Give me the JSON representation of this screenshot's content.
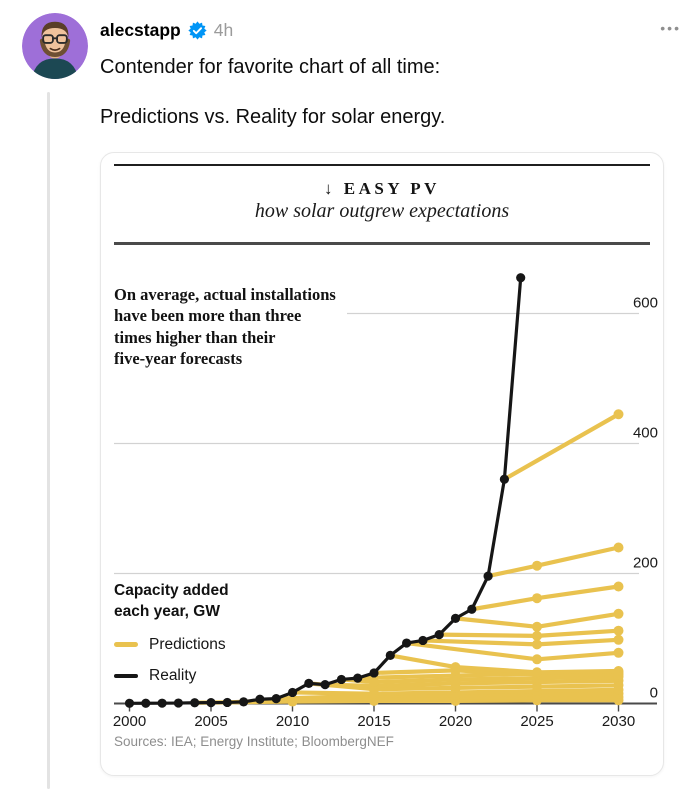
{
  "icons": {
    "more_options": "•••",
    "verified_badge_color": "#0095f6"
  },
  "post": {
    "username": "alecstapp",
    "timestamp": "4h",
    "verified": true,
    "text_line1": "Contender for favorite chart of all time:",
    "text_line2": "Predictions vs. Reality for solar energy."
  },
  "chart_card": {
    "kicker": "↓ EASY PV",
    "subtitle": "how solar outgrew expectations",
    "annotation_lines": [
      "On average, actual installations",
      "have been more than three",
      "times higher than their",
      "five-year forecasts"
    ],
    "legend": {
      "title_line1": "Capacity added",
      "title_line2": "each year, GW",
      "items": [
        {
          "label": "Predictions",
          "color": "#e9c24f"
        },
        {
          "label": "Reality",
          "color": "#161616"
        }
      ]
    },
    "sources": "Sources: IEA; Energy Institute; BloombergNEF"
  },
  "chart_data": {
    "type": "line",
    "title": "EASY PV — how solar outgrew expectations",
    "ylabel": "Capacity added each year, GW",
    "xlim": [
      1999.2,
      2032.5
    ],
    "ylim": [
      0,
      680
    ],
    "x_ticks": [
      2000,
      2005,
      2010,
      2015,
      2020,
      2025,
      2030
    ],
    "y_ticks": [
      0,
      200,
      400,
      600
    ],
    "y_axis_side": "right",
    "grid": true,
    "legend_position": "left-middle",
    "colors": {
      "predictions": "#e9c24f",
      "reality": "#161616"
    },
    "reality": {
      "label": "Reality",
      "years": [
        2000,
        2001,
        2002,
        2003,
        2004,
        2005,
        2006,
        2007,
        2008,
        2009,
        2010,
        2011,
        2012,
        2013,
        2014,
        2015,
        2016,
        2017,
        2018,
        2019,
        2020,
        2021,
        2022,
        2023,
        2024
      ],
      "values": [
        0.3,
        0.4,
        0.5,
        0.7,
        1.1,
        1.4,
        1.6,
        2.5,
        6.5,
        7.5,
        17,
        31,
        29,
        37,
        39,
        47,
        74,
        93,
        97,
        106,
        131,
        145,
        196,
        345,
        655
      ]
    },
    "predictions": {
      "label": "Predictions",
      "series": [
        {
          "forecast_year": 2004,
          "points": [
            [
              2004,
              1.1
            ],
            [
              2010,
              3
            ],
            [
              2015,
              4
            ],
            [
              2020,
              4
            ],
            [
              2025,
              5
            ],
            [
              2030,
              5
            ]
          ]
        },
        {
          "forecast_year": 2006,
          "points": [
            [
              2006,
              1.6
            ],
            [
              2010,
              6
            ],
            [
              2015,
              8
            ],
            [
              2020,
              9
            ],
            [
              2025,
              9
            ],
            [
              2030,
              10
            ]
          ]
        },
        {
          "forecast_year": 2009,
          "points": [
            [
              2009,
              7.5
            ],
            [
              2015,
              12
            ],
            [
              2020,
              13
            ],
            [
              2025,
              14
            ],
            [
              2030,
              15
            ]
          ]
        },
        {
          "forecast_year": 2010,
          "points": [
            [
              2010,
              17
            ],
            [
              2015,
              15
            ],
            [
              2020,
              17
            ],
            [
              2025,
              19
            ],
            [
              2030,
              21
            ]
          ]
        },
        {
          "forecast_year": 2011,
          "points": [
            [
              2011,
              31
            ],
            [
              2015,
              22
            ],
            [
              2020,
              24
            ],
            [
              2025,
              26
            ],
            [
              2030,
              28
            ]
          ]
        },
        {
          "forecast_year": 2012,
          "points": [
            [
              2012,
              29
            ],
            [
              2015,
              27
            ],
            [
              2020,
              31
            ],
            [
              2025,
              33
            ],
            [
              2030,
              35
            ]
          ]
        },
        {
          "forecast_year": 2013,
          "points": [
            [
              2013,
              37
            ],
            [
              2015,
              33
            ],
            [
              2020,
              37
            ],
            [
              2025,
              39
            ],
            [
              2030,
              41
            ]
          ]
        },
        {
          "forecast_year": 2014,
          "points": [
            [
              2014,
              39
            ],
            [
              2020,
              43
            ],
            [
              2025,
              46
            ],
            [
              2030,
              47
            ]
          ]
        },
        {
          "forecast_year": 2015,
          "points": [
            [
              2015,
              47
            ],
            [
              2020,
              51
            ],
            [
              2025,
              45
            ],
            [
              2030,
              44
            ]
          ]
        },
        {
          "forecast_year": 2016,
          "points": [
            [
              2016,
              74
            ],
            [
              2020,
              56
            ],
            [
              2025,
              48
            ],
            [
              2030,
              50
            ]
          ]
        },
        {
          "forecast_year": 2017,
          "points": [
            [
              2017,
              93
            ],
            [
              2025,
              68
            ],
            [
              2030,
              78
            ]
          ]
        },
        {
          "forecast_year": 2018,
          "points": [
            [
              2018,
              97
            ],
            [
              2025,
              91
            ],
            [
              2030,
              98
            ]
          ]
        },
        {
          "forecast_year": 2019,
          "points": [
            [
              2019,
              106
            ],
            [
              2025,
              104
            ],
            [
              2030,
              112
            ]
          ]
        },
        {
          "forecast_year": 2020,
          "points": [
            [
              2020,
              131
            ],
            [
              2025,
              118
            ],
            [
              2030,
              138
            ]
          ]
        },
        {
          "forecast_year": 2021,
          "points": [
            [
              2021,
              145
            ],
            [
              2025,
              162
            ],
            [
              2030,
              180
            ]
          ]
        },
        {
          "forecast_year": 2022,
          "points": [
            [
              2022,
              196
            ],
            [
              2025,
              212
            ],
            [
              2030,
              240
            ]
          ]
        },
        {
          "forecast_year": 2023,
          "points": [
            [
              2023,
              345
            ],
            [
              2030,
              445
            ]
          ]
        }
      ]
    }
  }
}
